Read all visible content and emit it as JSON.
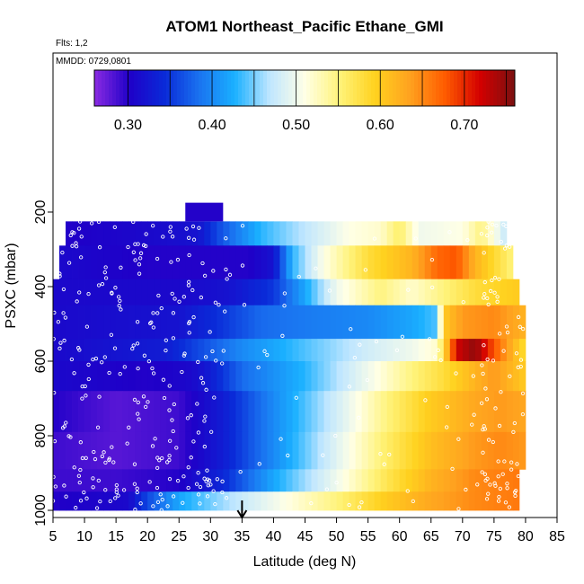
{
  "chart_data": {
    "type": "heatmap",
    "title": "ATOM1 Northeast_Pacific Ethane_GMI",
    "annotations": [
      "Flts: 1,2",
      "MMDD: 0729,0801"
    ],
    "xlabel": "Latitude (deg N)",
    "ylabel": "PSXC (mbar)",
    "xlim": [
      5,
      85
    ],
    "ylim": [
      1000,
      100
    ],
    "x_ticks": [
      "5",
      "10",
      "15",
      "20",
      "25",
      "30",
      "35",
      "40",
      "45",
      "50",
      "55",
      "60",
      "65",
      "70",
      "75",
      "80",
      "85"
    ],
    "y_ticks": [
      "200",
      "400",
      "600",
      "800",
      "1000"
    ],
    "colorbar": {
      "min": 0.26,
      "max": 0.76,
      "tick_labels": [
        "0.30",
        "0.40",
        "0.50",
        "0.60",
        "0.70"
      ],
      "tick_values": [
        0.3,
        0.4,
        0.5,
        0.6,
        0.7
      ],
      "colors": [
        "#8b2be2",
        "#1f00c8",
        "#0a2ad8",
        "#1a73f0",
        "#1ab0ff",
        "#bfe6ff",
        "#ffffe6",
        "#fff37a",
        "#ffd21f",
        "#ffa21f",
        "#ff5c00",
        "#d40000",
        "#7a1010"
      ]
    },
    "arrow_marker": {
      "latitude": 35
    },
    "rows": [
      {
        "p_top": 225,
        "p_bot": 290,
        "lat_min": 7,
        "lat_max": 77,
        "keys": [
          [
            7,
            0.3
          ],
          [
            20,
            0.31
          ],
          [
            28,
            0.32
          ],
          [
            32,
            0.37
          ],
          [
            38,
            0.43
          ],
          [
            45,
            0.47
          ],
          [
            52,
            0.51
          ],
          [
            57,
            0.52
          ],
          [
            60,
            0.56
          ],
          [
            63,
            0.5
          ],
          [
            70,
            0.51
          ],
          [
            73,
            0.55
          ],
          [
            77,
            0.47
          ]
        ]
      },
      {
        "p_top": 290,
        "p_bot": 380,
        "lat_min": 6,
        "lat_max": 78,
        "keys": [
          [
            6,
            0.31
          ],
          [
            20,
            0.3
          ],
          [
            30,
            0.3
          ],
          [
            36,
            0.3
          ],
          [
            40,
            0.32
          ],
          [
            43,
            0.43
          ],
          [
            48,
            0.51
          ],
          [
            55,
            0.58
          ],
          [
            62,
            0.62
          ],
          [
            66,
            0.67
          ],
          [
            69,
            0.68
          ],
          [
            72,
            0.62
          ],
          [
            78,
            0.55
          ]
        ]
      },
      {
        "p_top": 380,
        "p_bot": 450,
        "lat_min": 5,
        "lat_max": 79,
        "keys": [
          [
            5,
            0.31
          ],
          [
            25,
            0.31
          ],
          [
            33,
            0.32
          ],
          [
            40,
            0.35
          ],
          [
            45,
            0.42
          ],
          [
            50,
            0.5
          ],
          [
            57,
            0.55
          ],
          [
            62,
            0.52
          ],
          [
            67,
            0.55
          ],
          [
            72,
            0.58
          ],
          [
            79,
            0.6
          ]
        ]
      },
      {
        "p_top": 450,
        "p_bot": 540,
        "lat_min": 5,
        "lat_max": 80,
        "keys": [
          [
            5,
            0.31
          ],
          [
            25,
            0.32
          ],
          [
            32,
            0.35
          ],
          [
            38,
            0.38
          ],
          [
            45,
            0.39
          ],
          [
            55,
            0.4
          ],
          [
            62,
            0.42
          ],
          [
            66,
            0.44
          ],
          [
            67,
            0.6
          ],
          [
            70,
            0.64
          ],
          [
            75,
            0.65
          ],
          [
            80,
            0.62
          ]
        ]
      },
      {
        "p_top": 540,
        "p_bot": 600,
        "lat_min": 5,
        "lat_max": 80,
        "keys": [
          [
            5,
            0.31
          ],
          [
            23,
            0.33
          ],
          [
            28,
            0.36
          ],
          [
            35,
            0.4
          ],
          [
            45,
            0.44
          ],
          [
            55,
            0.48
          ],
          [
            62,
            0.5
          ],
          [
            66,
            0.52
          ],
          [
            67,
            0.58
          ],
          [
            69,
            0.72
          ],
          [
            72,
            0.75
          ],
          [
            75,
            0.68
          ],
          [
            80,
            0.58
          ]
        ]
      },
      {
        "p_top": 600,
        "p_bot": 680,
        "lat_min": 5,
        "lat_max": 80,
        "keys": [
          [
            5,
            0.31
          ],
          [
            20,
            0.3
          ],
          [
            27,
            0.31
          ],
          [
            30,
            0.33
          ],
          [
            35,
            0.38
          ],
          [
            45,
            0.43
          ],
          [
            55,
            0.5
          ],
          [
            62,
            0.55
          ],
          [
            67,
            0.58
          ],
          [
            72,
            0.62
          ],
          [
            75,
            0.64
          ],
          [
            80,
            0.6
          ]
        ]
      },
      {
        "p_top": 680,
        "p_bot": 790,
        "lat_min": 5,
        "lat_max": 80,
        "keys": [
          [
            5,
            0.3
          ],
          [
            15,
            0.28
          ],
          [
            25,
            0.29
          ],
          [
            32,
            0.33
          ],
          [
            40,
            0.4
          ],
          [
            50,
            0.48
          ],
          [
            58,
            0.55
          ],
          [
            65,
            0.6
          ],
          [
            72,
            0.63
          ],
          [
            76,
            0.64
          ],
          [
            80,
            0.63
          ]
        ]
      },
      {
        "p_top": 790,
        "p_bot": 890,
        "lat_min": 5,
        "lat_max": 80,
        "keys": [
          [
            5,
            0.29
          ],
          [
            15,
            0.28
          ],
          [
            25,
            0.29
          ],
          [
            32,
            0.33
          ],
          [
            40,
            0.4
          ],
          [
            50,
            0.49
          ],
          [
            58,
            0.56
          ],
          [
            65,
            0.61
          ],
          [
            72,
            0.64
          ],
          [
            76,
            0.65
          ],
          [
            80,
            0.64
          ]
        ]
      },
      {
        "p_top": 890,
        "p_bot": 950,
        "lat_min": 5,
        "lat_max": 79,
        "keys": [
          [
            5,
            0.29
          ],
          [
            15,
            0.29
          ],
          [
            25,
            0.3
          ],
          [
            32,
            0.34
          ],
          [
            40,
            0.42
          ],
          [
            50,
            0.5
          ],
          [
            58,
            0.57
          ],
          [
            65,
            0.62
          ],
          [
            72,
            0.65
          ],
          [
            79,
            0.66
          ]
        ]
      },
      {
        "p_top": 950,
        "p_bot": 1000,
        "lat_min": 5,
        "lat_max": 79,
        "keys": [
          [
            5,
            0.3
          ],
          [
            17,
            0.31
          ],
          [
            20,
            0.36
          ],
          [
            25,
            0.42
          ],
          [
            32,
            0.46
          ],
          [
            40,
            0.5
          ],
          [
            50,
            0.55
          ],
          [
            58,
            0.6
          ],
          [
            65,
            0.63
          ],
          [
            72,
            0.65
          ],
          [
            79,
            0.66
          ]
        ]
      }
    ],
    "top_block": {
      "p_top": 175,
      "p_bot": 225,
      "lat_min": 26,
      "lat_max": 32,
      "value": 0.3
    }
  }
}
